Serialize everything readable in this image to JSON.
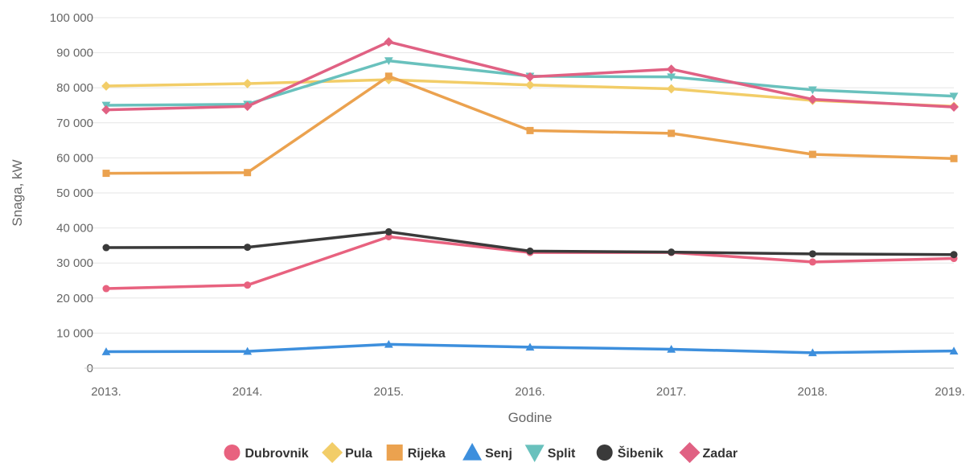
{
  "chart_data": {
    "type": "line",
    "title": "",
    "xlabel": "Godine",
    "ylabel": "Snaga, kW",
    "categories": [
      "2013.",
      "2014.",
      "2015.",
      "2016.",
      "2017.",
      "2018.",
      "2019."
    ],
    "ylim": [
      0,
      100000
    ],
    "yticks": [
      0,
      10000,
      20000,
      30000,
      40000,
      50000,
      60000,
      70000,
      80000,
      90000,
      100000
    ],
    "ytick_labels": [
      "0",
      "10 000",
      "20 000",
      "30 000",
      "40 000",
      "50 000",
      "60 000",
      "70 000",
      "80 000",
      "90 000",
      "100 000"
    ],
    "grid": true,
    "legend_position": "bottom-center",
    "series": [
      {
        "name": "Dubrovnik",
        "color": "#e8627f",
        "marker": "circle",
        "values": [
          22700,
          23700,
          37500,
          33000,
          33000,
          30300,
          31300
        ]
      },
      {
        "name": "Pula",
        "color": "#f2cd68",
        "marker": "diamond",
        "values": [
          80500,
          81200,
          82300,
          80800,
          79700,
          76400,
          74700
        ]
      },
      {
        "name": "Rijeka",
        "color": "#eba24f",
        "marker": "square",
        "values": [
          55600,
          55800,
          83300,
          67800,
          67000,
          61000,
          59800
        ]
      },
      {
        "name": "Senj",
        "color": "#3d8fdd",
        "marker": "triangle-up",
        "values": [
          4700,
          4800,
          6800,
          6000,
          5400,
          4400,
          4900
        ]
      },
      {
        "name": "Split",
        "color": "#69c1bd",
        "marker": "triangle-down",
        "values": [
          75000,
          75300,
          87700,
          83300,
          83100,
          79400,
          77600
        ]
      },
      {
        "name": "Šibenik",
        "color": "#3a3a3a",
        "marker": "circle",
        "values": [
          34400,
          34500,
          38900,
          33400,
          33100,
          32600,
          32400
        ]
      },
      {
        "name": "Zadar",
        "color": "#e06183",
        "marker": "diamond",
        "values": [
          73700,
          74700,
          93100,
          83100,
          85300,
          76700,
          74500
        ]
      }
    ]
  }
}
